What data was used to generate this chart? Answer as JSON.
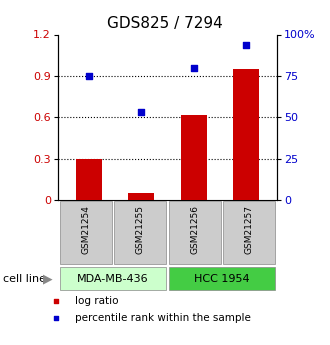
{
  "title": "GDS825 / 7294",
  "samples": [
    "GSM21254",
    "GSM21255",
    "GSM21256",
    "GSM21257"
  ],
  "log_ratio": [
    0.3,
    0.055,
    0.62,
    0.95
  ],
  "percentile_rank": [
    75.0,
    53.0,
    80.0,
    93.5
  ],
  "left_ylim": [
    0,
    1.2
  ],
  "right_ylim": [
    0,
    100
  ],
  "left_yticks": [
    0,
    0.3,
    0.6,
    0.9,
    1.2
  ],
  "right_yticks": [
    0,
    25,
    50,
    75,
    100
  ],
  "right_yticklabels": [
    "0",
    "25",
    "50",
    "75",
    "100%"
  ],
  "bar_color": "#cc0000",
  "dot_color": "#0000cc",
  "cell_line_groups": [
    {
      "label": "MDA-MB-436",
      "samples": [
        0,
        1
      ],
      "color": "#ccffcc"
    },
    {
      "label": "HCC 1954",
      "samples": [
        2,
        3
      ],
      "color": "#44cc44"
    }
  ],
  "sample_box_color": "#cccccc",
  "title_fontsize": 11,
  "tick_fontsize": 8,
  "left_axis_color": "#cc0000",
  "right_axis_color": "#0000cc",
  "gridline_values": [
    0.3,
    0.6,
    0.9
  ]
}
